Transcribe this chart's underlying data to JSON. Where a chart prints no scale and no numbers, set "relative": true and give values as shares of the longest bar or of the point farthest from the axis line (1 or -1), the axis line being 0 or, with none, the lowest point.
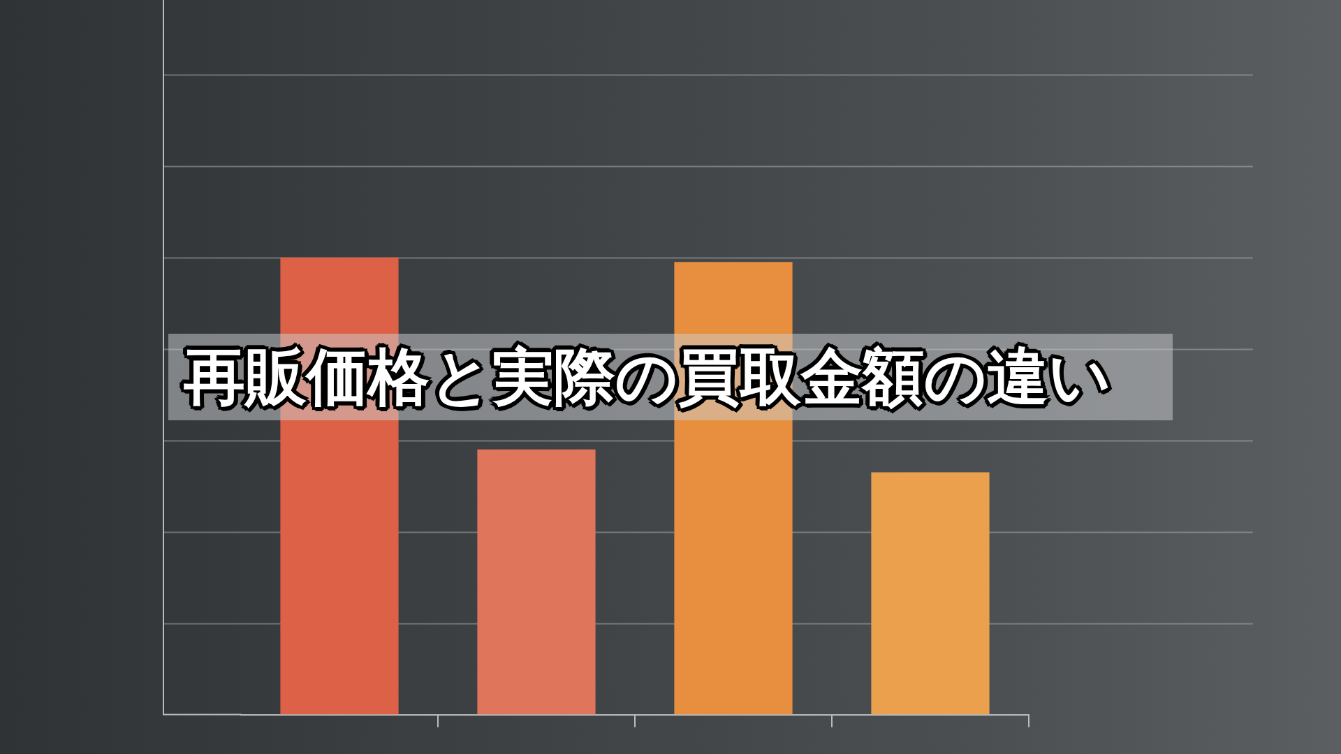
{
  "chart_data": {
    "type": "bar",
    "title": "再販価格と実際の買取金額の違い",
    "categories": [
      null,
      null,
      null,
      null
    ],
    "values": [
      1,
      0.58,
      0.99,
      0.53
    ],
    "colors": [
      "#dd6147",
      "#df755a",
      "#e78f3e",
      "#eba04e"
    ],
    "relative": true,
    "grid": "y"
  }
}
